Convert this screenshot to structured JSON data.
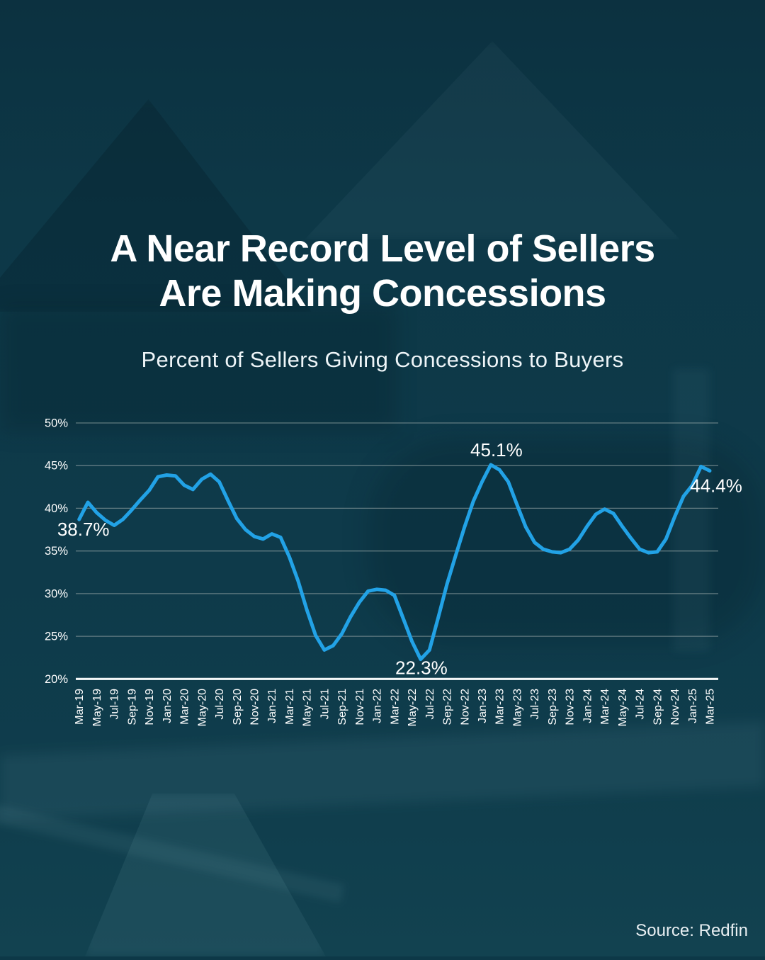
{
  "page": {
    "title_line1": "A Near Record Level of Sellers",
    "title_line2": "Are Making Concessions",
    "subtitle": "Percent of Sellers Giving Concessions to Buyers",
    "source": "Source: Redfin"
  },
  "colors": {
    "background": "#0d3847",
    "line": "#22a2e6",
    "grid": "#aab4b2",
    "axis": "#f4f7f7",
    "text": "#ffffff"
  },
  "chart_data": {
    "type": "line",
    "title": "Percent of Sellers Giving Concessions to Buyers",
    "xlabel": "",
    "ylabel": "",
    "ylim": [
      20,
      50
    ],
    "grid": true,
    "legend": false,
    "frequency": "monthly",
    "y_tick_labels": [
      "50%",
      "45%",
      "40%",
      "35%",
      "30%",
      "25%",
      "20%"
    ],
    "x_tick_labels": [
      "Mar-19",
      "May-19",
      "Jul-19",
      "Sep-19",
      "Nov-19",
      "Jan-20",
      "Mar-20",
      "May-20",
      "Jul-20",
      "Sep-20",
      "Nov-20",
      "Jan-21",
      "Mar-21",
      "May-21",
      "Jul-21",
      "Sep-21",
      "Nov-21",
      "Jan-22",
      "Mar-22",
      "May-22",
      "Jul-22",
      "Sep-22",
      "Nov-22",
      "Jan-23",
      "Mar-23",
      "May-23",
      "Jul-23",
      "Sep-23",
      "Nov-23",
      "Jan-24",
      "Mar-24",
      "May-24",
      "Jul-24",
      "Sep-24",
      "Nov-24",
      "Jan-25",
      "Mar-25"
    ],
    "months": [
      "Mar-19",
      "Apr-19",
      "May-19",
      "Jun-19",
      "Jul-19",
      "Aug-19",
      "Sep-19",
      "Oct-19",
      "Nov-19",
      "Dec-19",
      "Jan-20",
      "Feb-20",
      "Mar-20",
      "Apr-20",
      "May-20",
      "Jun-20",
      "Jul-20",
      "Aug-20",
      "Sep-20",
      "Oct-20",
      "Nov-20",
      "Dec-20",
      "Jan-21",
      "Feb-21",
      "Mar-21",
      "Apr-21",
      "May-21",
      "Jun-21",
      "Jul-21",
      "Aug-21",
      "Sep-21",
      "Oct-21",
      "Nov-21",
      "Dec-21",
      "Jan-22",
      "Feb-22",
      "Mar-22",
      "Apr-22",
      "May-22",
      "Jun-22",
      "Jul-22",
      "Aug-22",
      "Sep-22",
      "Oct-22",
      "Nov-22",
      "Dec-22",
      "Jan-23",
      "Feb-23",
      "Mar-23",
      "Apr-23",
      "May-23",
      "Jun-23",
      "Jul-23",
      "Aug-23",
      "Sep-23",
      "Oct-23",
      "Nov-23",
      "Dec-23",
      "Jan-24",
      "Feb-24",
      "Mar-24",
      "Apr-24",
      "May-24",
      "Jun-24",
      "Jul-24",
      "Aug-24",
      "Sep-24",
      "Oct-24",
      "Nov-24",
      "Dec-24",
      "Jan-25",
      "Feb-25",
      "Mar-25"
    ],
    "values": [
      38.7,
      40.7,
      39.5,
      38.6,
      38.0,
      38.7,
      39.8,
      41.0,
      42.1,
      43.7,
      43.9,
      43.8,
      42.7,
      42.2,
      43.4,
      44.0,
      43.1,
      40.9,
      38.8,
      37.5,
      36.7,
      36.4,
      37.0,
      36.6,
      34.3,
      31.5,
      28.1,
      25.1,
      23.4,
      23.9,
      25.3,
      27.3,
      29.0,
      30.3,
      30.5,
      30.4,
      29.8,
      27.1,
      24.4,
      22.3,
      23.4,
      27.2,
      31.1,
      34.5,
      37.8,
      40.8,
      43.1,
      45.1,
      44.5,
      43.1,
      40.4,
      37.8,
      36.0,
      35.2,
      34.9,
      34.8,
      35.2,
      36.3,
      37.9,
      39.3,
      39.9,
      39.4,
      37.9,
      36.5,
      35.2,
      34.8,
      34.9,
      36.4,
      39.0,
      41.4,
      42.7,
      44.9,
      44.4
    ],
    "annotations": [
      {
        "label": "38.7%",
        "month": "Mar-19",
        "index": 0,
        "position": "left-below"
      },
      {
        "label": "22.3%",
        "month": "Jun-22",
        "index": 39,
        "position": "below"
      },
      {
        "label": "45.1%",
        "month": "Feb-23",
        "index": 47,
        "position": "above"
      },
      {
        "label": "44.4%",
        "month": "Mar-25",
        "index": 72,
        "position": "right-below"
      }
    ]
  }
}
